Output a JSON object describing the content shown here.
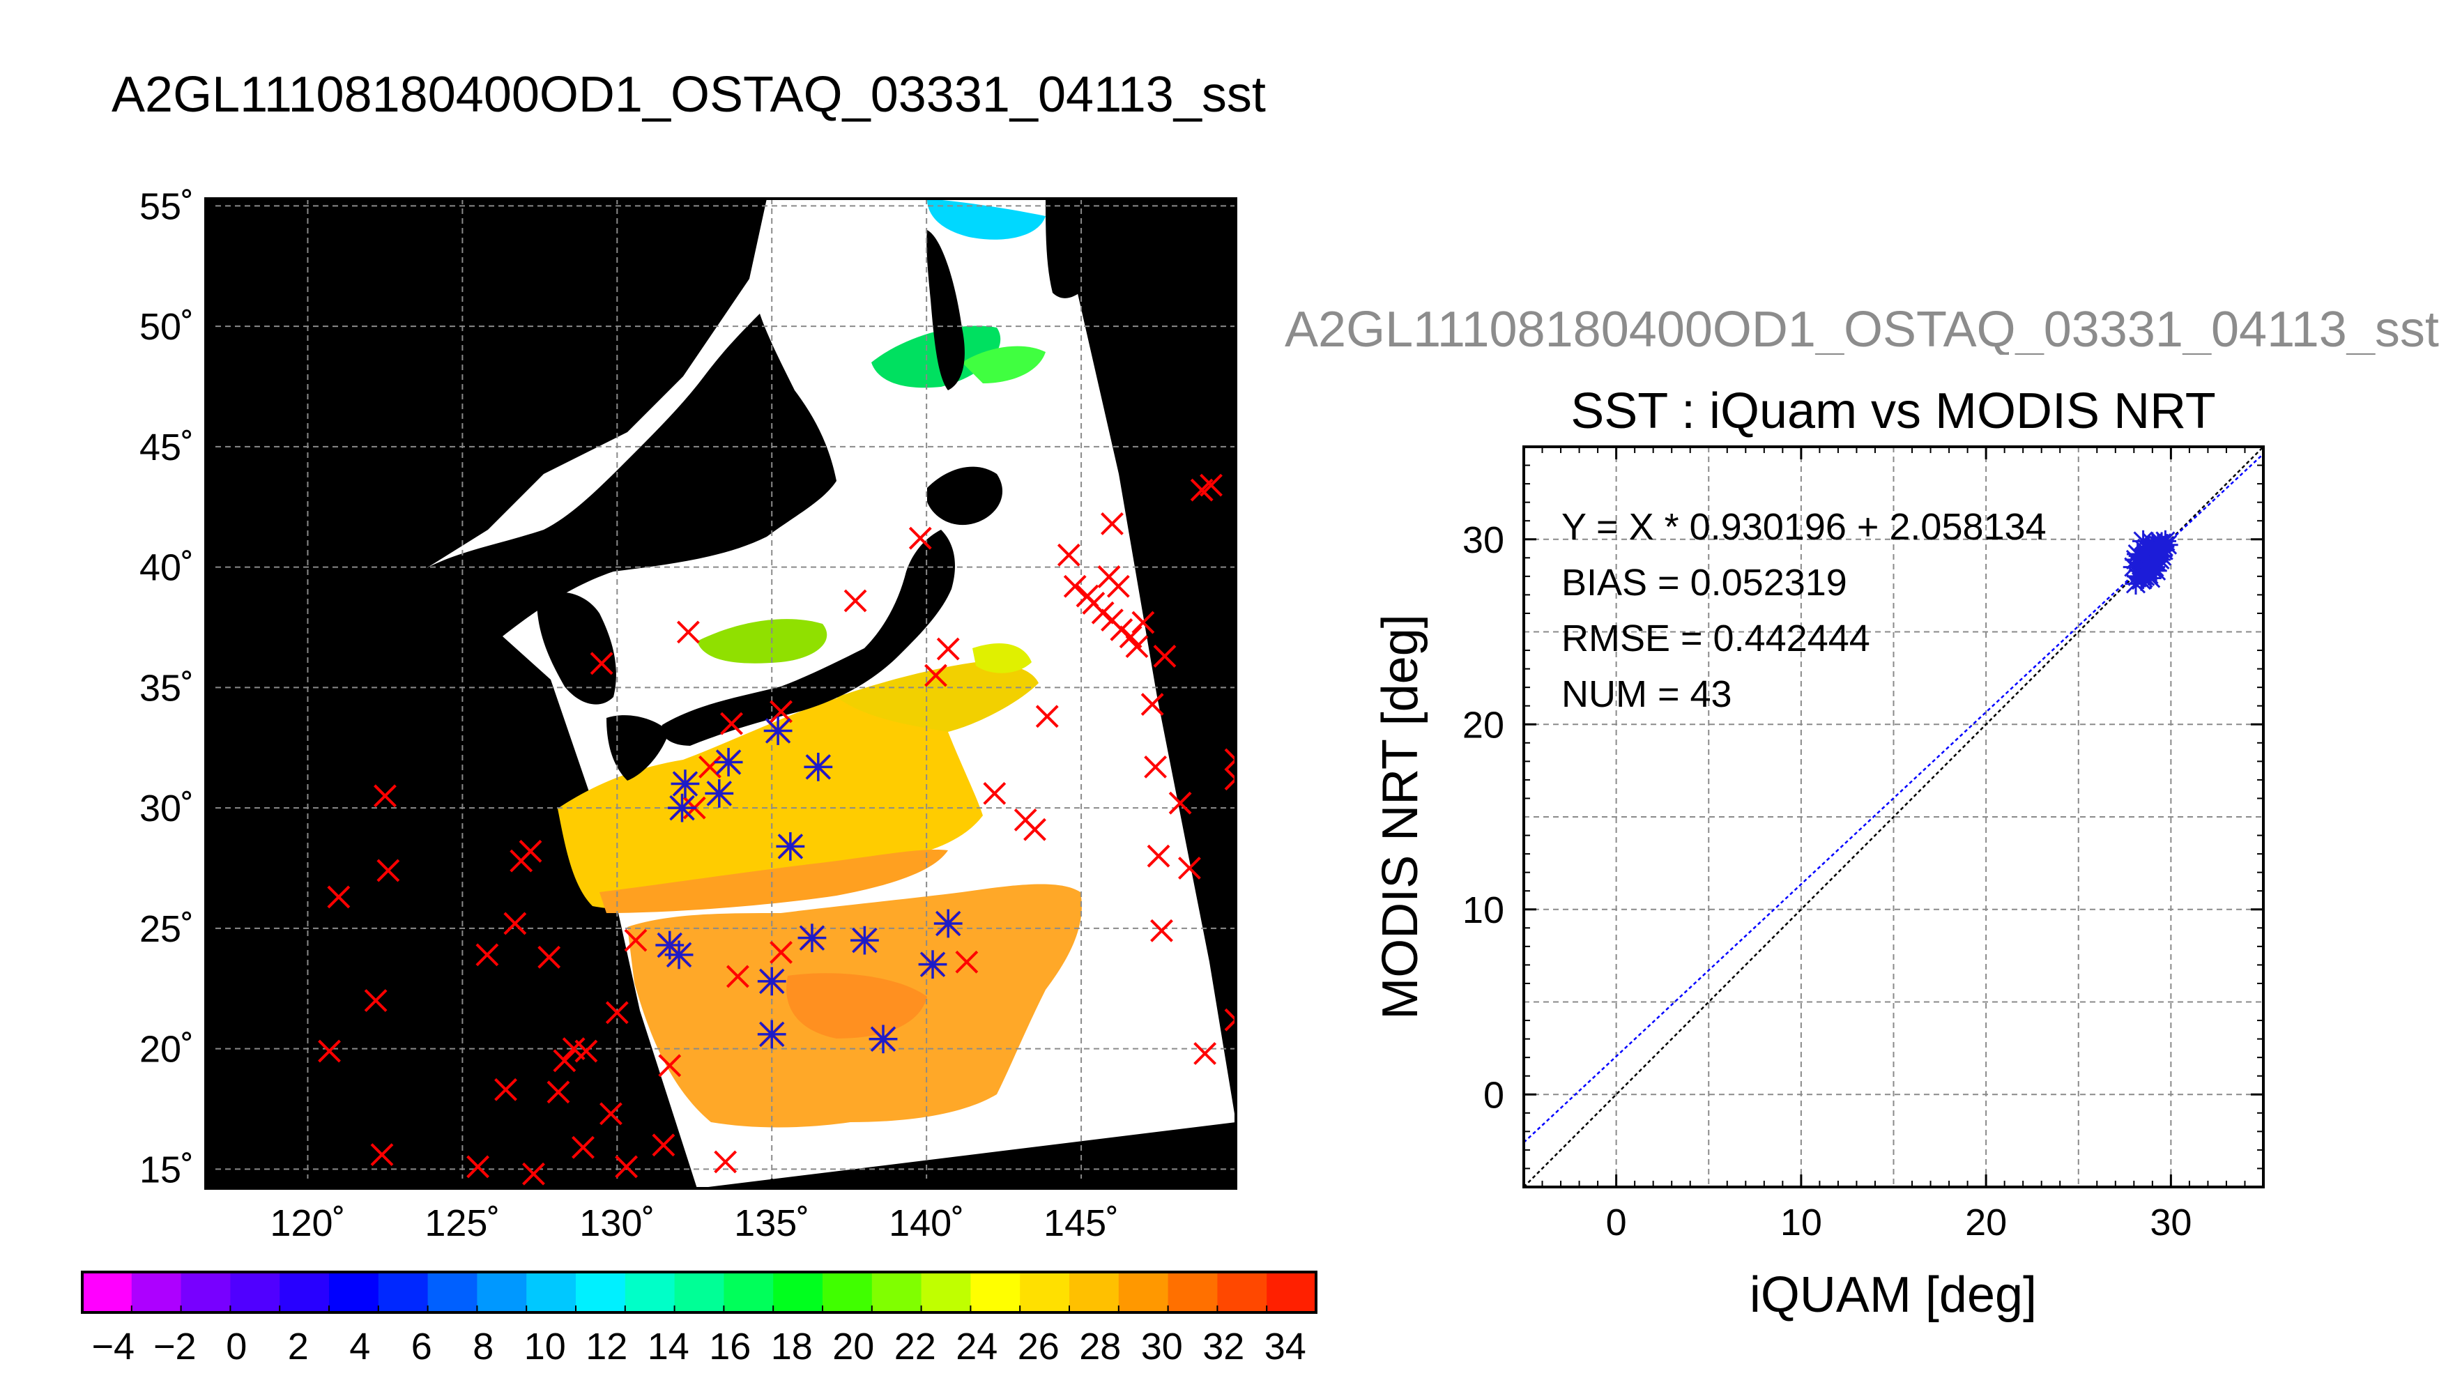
{
  "header": {
    "main_title": "A2GL11108180400OD1_OSTAQ_03331_04113_sst",
    "right_title": "A2GL11108180400OD1_OSTAQ_03331_04113_sst"
  },
  "chart_data": [
    {
      "type": "map",
      "title": "A2GL11108180400OD1_OSTAQ_03331_04113_sst",
      "x_ticks": [
        "120˚",
        "125˚",
        "130˚",
        "135˚",
        "140˚",
        "145˚"
      ],
      "x_tick_values": [
        120,
        125,
        130,
        135,
        140,
        145
      ],
      "y_ticks": [
        "15˚",
        "20˚",
        "25˚",
        "30˚",
        "35˚",
        "40˚",
        "45˚",
        "50˚",
        "55˚"
      ],
      "y_tick_values": [
        15,
        20,
        25,
        30,
        35,
        40,
        45,
        50,
        55
      ],
      "xlim": [
        116.7,
        150
      ],
      "ylim": [
        14.2,
        55.3
      ],
      "grid": true,
      "markers": {
        "red_x": [
          [
            120.7,
            19.9
          ],
          [
            121.0,
            26.3
          ],
          [
            122.2,
            22.0
          ],
          [
            122.4,
            15.6
          ],
          [
            122.5,
            30.5
          ],
          [
            122.6,
            27.4
          ],
          [
            125.5,
            15.1
          ],
          [
            125.8,
            23.9
          ],
          [
            126.4,
            18.3
          ],
          [
            126.7,
            25.2
          ],
          [
            126.9,
            27.8
          ],
          [
            127.2,
            28.2
          ],
          [
            127.3,
            14.8
          ],
          [
            127.8,
            23.8
          ],
          [
            128.1,
            18.2
          ],
          [
            128.3,
            19.5
          ],
          [
            128.6,
            20.0
          ],
          [
            128.9,
            15.9
          ],
          [
            129.0,
            19.9
          ],
          [
            129.8,
            17.3
          ],
          [
            130.0,
            21.5
          ],
          [
            130.3,
            15.1
          ],
          [
            130.6,
            24.5
          ],
          [
            131.5,
            16.0
          ],
          [
            131.7,
            19.3
          ],
          [
            133.5,
            15.3
          ],
          [
            133.9,
            23.0
          ],
          [
            135.3,
            24.0
          ],
          [
            132.3,
            37.3
          ],
          [
            129.5,
            36.0
          ],
          [
            137.7,
            38.6
          ],
          [
            139.8,
            41.2
          ],
          [
            140.3,
            35.5
          ],
          [
            140.7,
            36.6
          ],
          [
            141.3,
            23.6
          ],
          [
            142.2,
            30.6
          ],
          [
            143.2,
            29.5
          ],
          [
            143.5,
            29.1
          ],
          [
            143.9,
            33.8
          ],
          [
            144.6,
            40.5
          ],
          [
            144.8,
            39.2
          ],
          [
            145.2,
            38.8
          ],
          [
            145.4,
            38.5
          ],
          [
            145.7,
            38.1
          ],
          [
            145.9,
            39.6
          ],
          [
            146.0,
            37.8
          ],
          [
            146.3,
            37.4
          ],
          [
            146.6,
            37.1
          ],
          [
            146.8,
            36.7
          ],
          [
            146.2,
            39.2
          ],
          [
            146.0,
            41.8
          ],
          [
            147.3,
            34.3
          ],
          [
            147.4,
            31.7
          ],
          [
            147.5,
            28.0
          ],
          [
            147.6,
            24.9
          ],
          [
            147.7,
            36.3
          ],
          [
            147.0,
            37.7
          ],
          [
            148.2,
            30.2
          ],
          [
            148.5,
            27.5
          ],
          [
            149.0,
            19.8
          ],
          [
            150.0,
            21.2
          ],
          [
            150.0,
            32.0
          ],
          [
            150.0,
            31.2
          ],
          [
            148.9,
            43.2
          ],
          [
            149.2,
            43.4
          ],
          [
            135.3,
            34.0
          ],
          [
            133.0,
            31.7
          ],
          [
            132.5,
            30.0
          ],
          [
            133.7,
            33.5
          ]
        ],
        "blue_star": [
          [
            131.7,
            24.3
          ],
          [
            132.0,
            23.9
          ],
          [
            132.2,
            31.0
          ],
          [
            132.1,
            30.0
          ],
          [
            133.3,
            30.6
          ],
          [
            133.6,
            31.9
          ],
          [
            135.0,
            22.8
          ],
          [
            135.0,
            20.6
          ],
          [
            135.2,
            33.2
          ],
          [
            135.6,
            28.4
          ],
          [
            136.3,
            24.6
          ],
          [
            136.5,
            31.7
          ],
          [
            138.0,
            24.5
          ],
          [
            138.6,
            20.4
          ],
          [
            140.2,
            23.5
          ],
          [
            140.7,
            25.2
          ]
        ]
      }
    },
    {
      "type": "scatter",
      "title": "SST : iQuam vs MODIS NRT",
      "xlabel": "iQUAM [deg]",
      "ylabel": "MODIS NRT [deg]",
      "xlim": [
        -5,
        35
      ],
      "ylim": [
        -5,
        35
      ],
      "x_ticks": [
        "0",
        "10",
        "20",
        "30"
      ],
      "x_tick_values": [
        0,
        10,
        20,
        30
      ],
      "y_ticks": [
        "0",
        "10",
        "20",
        "30"
      ],
      "y_tick_values": [
        0,
        10,
        20,
        30
      ],
      "grid": true,
      "stats": [
        "Y = X * 0.930196 + 2.058134",
        "BIAS = 0.052319",
        "RMSE = 0.442444",
        "NUM = 43"
      ],
      "fit": {
        "slope": 0.930196,
        "intercept": 2.058134
      },
      "points": [
        [
          28.0,
          28.5
        ],
        [
          28.2,
          28.0
        ],
        [
          28.3,
          29.1
        ],
        [
          28.4,
          27.8
        ],
        [
          28.5,
          28.7
        ],
        [
          28.6,
          29.4
        ],
        [
          28.7,
          28.2
        ],
        [
          28.8,
          28.9
        ],
        [
          28.9,
          29.3
        ],
        [
          29.0,
          28.4
        ],
        [
          29.1,
          29.6
        ],
        [
          29.2,
          28.8
        ],
        [
          29.3,
          29.0
        ],
        [
          29.4,
          29.5
        ],
        [
          29.5,
          29.8
        ],
        [
          28.1,
          27.6
        ],
        [
          28.6,
          28.0
        ],
        [
          29.0,
          29.0
        ],
        [
          29.6,
          29.4
        ],
        [
          28.3,
          28.3
        ],
        [
          28.8,
          29.6
        ],
        [
          29.1,
          28.5
        ],
        [
          29.4,
          28.9
        ],
        [
          28.5,
          29.9
        ],
        [
          29.8,
          29.7
        ],
        [
          28.9,
          27.9
        ],
        [
          28.2,
          29.2
        ],
        [
          29.3,
          29.7
        ],
        [
          28.7,
          29.5
        ],
        [
          29.2,
          29.2
        ],
        [
          28.4,
          28.6
        ],
        [
          29.5,
          29.1
        ],
        [
          28.6,
          28.5
        ],
        [
          29.0,
          29.8
        ],
        [
          28.1,
          28.9
        ],
        [
          29.7,
          29.9
        ],
        [
          28.9,
          28.6
        ],
        [
          29.2,
          28.3
        ],
        [
          28.4,
          29.0
        ],
        [
          28.8,
          28.1
        ],
        [
          29.6,
          29.6
        ],
        [
          28.5,
          27.9
        ],
        [
          29.1,
          29.3
        ]
      ]
    },
    {
      "type": "colorbar",
      "labels": [
        "−4",
        "−2",
        "0",
        "2",
        "4",
        "6",
        "8",
        "10",
        "12",
        "14",
        "16",
        "18",
        "20",
        "22",
        "24",
        "26",
        "28",
        "30",
        "32",
        "34"
      ],
      "values": [
        -4,
        -2,
        0,
        2,
        4,
        6,
        8,
        10,
        12,
        14,
        16,
        18,
        20,
        22,
        24,
        26,
        28,
        30,
        32,
        34
      ],
      "range": [
        -5,
        35
      ],
      "colors": [
        "#ff00ff",
        "#ad00ff",
        "#7800ff",
        "#5000ff",
        "#2800ff",
        "#0000ff",
        "#0028ff",
        "#0060ff",
        "#0098ff",
        "#00c8ff",
        "#00f0ff",
        "#00ffc8",
        "#00ff96",
        "#00ff5a",
        "#00ff1e",
        "#40ff00",
        "#80ff00",
        "#c0ff00",
        "#ffff00",
        "#ffe000",
        "#ffc000",
        "#ff9800",
        "#ff7000",
        "#ff4800",
        "#ff2000"
      ]
    }
  ]
}
